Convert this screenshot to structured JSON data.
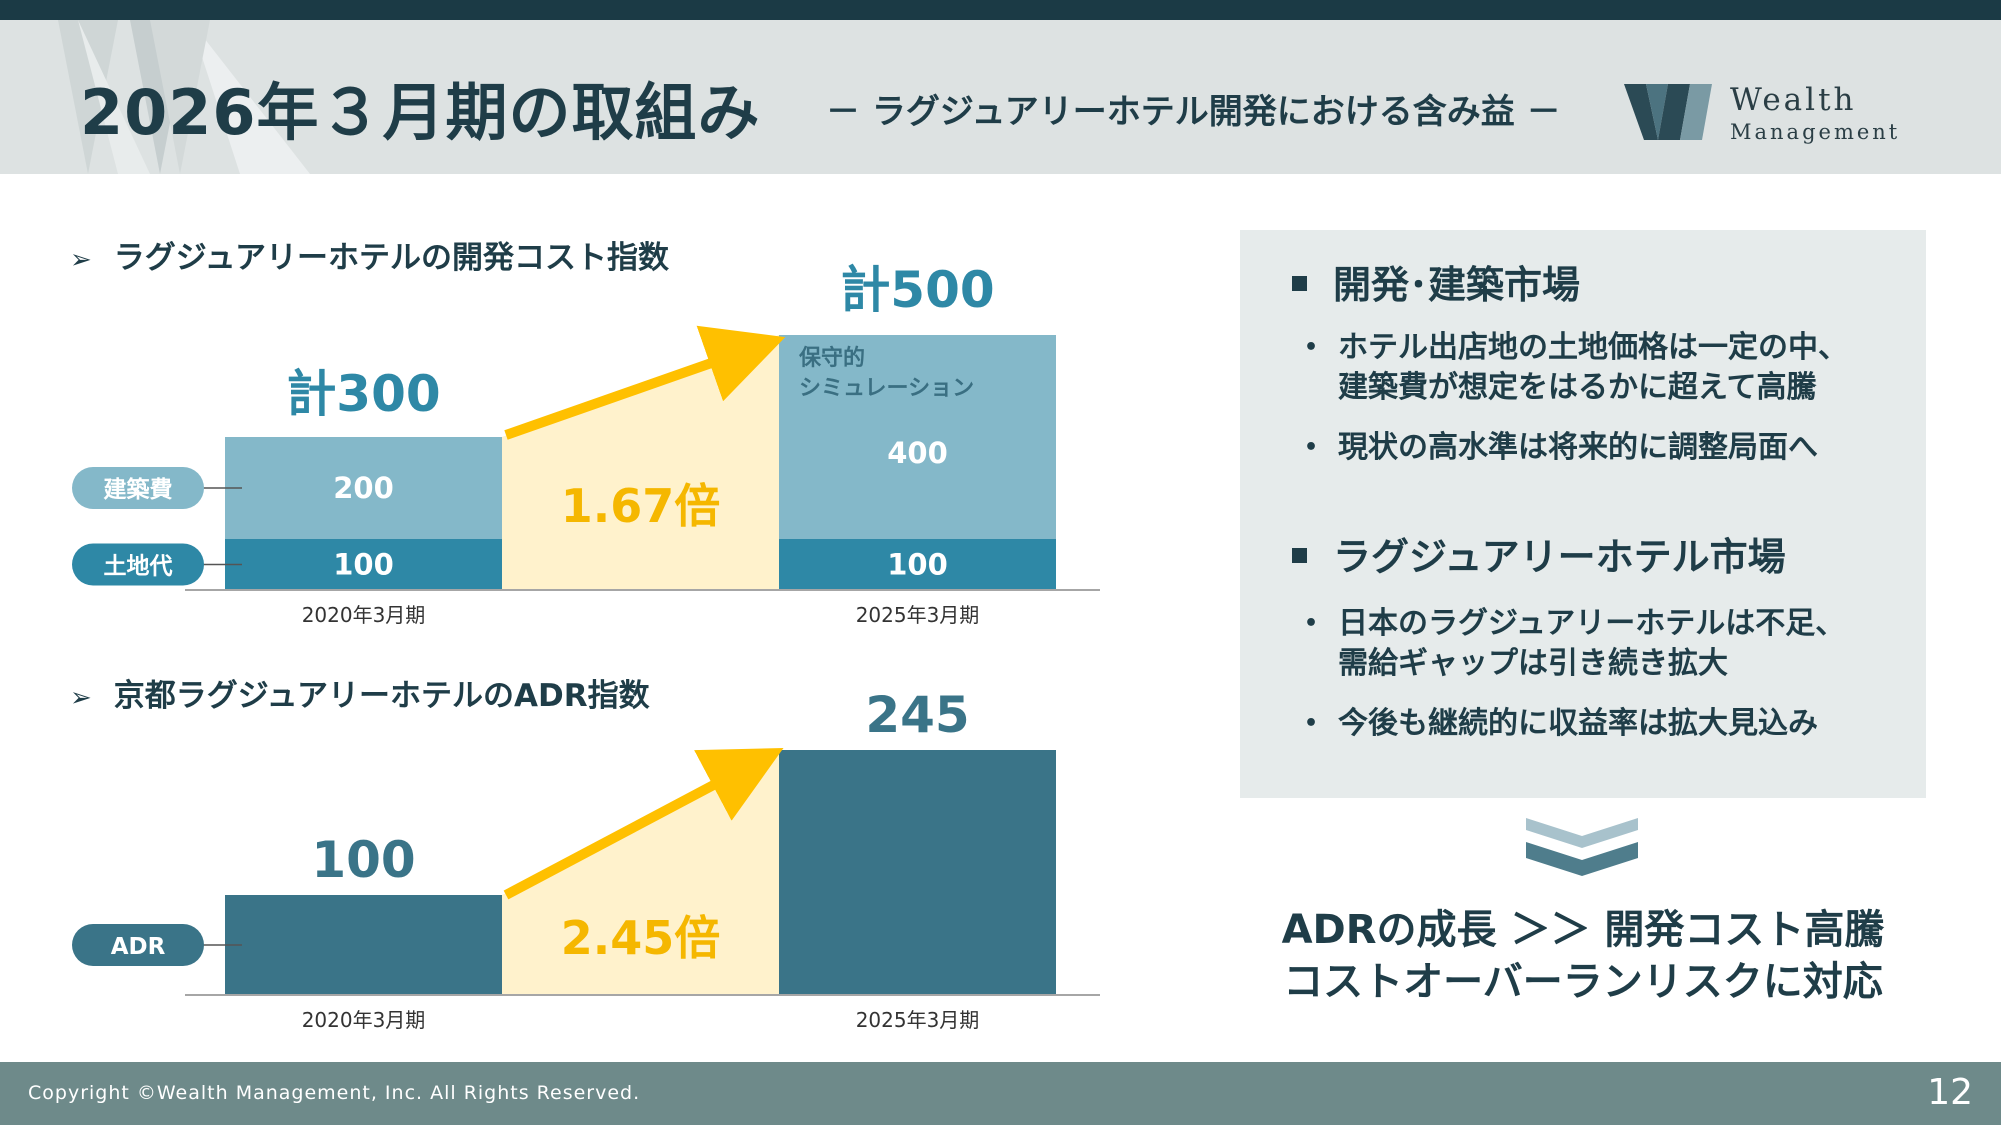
{
  "header": {
    "title": "2026年３月期の取組み",
    "subtitle": "－ ラグジュアリーホテル開発における含み益 －",
    "logo_line1": "Wealth",
    "logo_line2": "Management"
  },
  "colors": {
    "dark": "#1f3d48",
    "teal_dark": "#2e88a6",
    "teal_light": "#84b8c9",
    "adr_bar": "#3a7488",
    "arrow": "#ffc000",
    "highlight_fill": "#fff2cc",
    "multiplier_text": "#f5b700",
    "panel_bg": "#e6ebeb",
    "footer_bg": "#6e8a8a"
  },
  "cost_section": {
    "heading": "ラグジュアリーホテルの開発コスト指数",
    "labels": {
      "construction": "建築費",
      "land": "土地代"
    },
    "total_2020": "計300",
    "total_2025": "計500",
    "conservative_note_line1": "保守的",
    "conservative_note_line2": "シミュレーション",
    "multiplier": "1.67倍",
    "x_labels": [
      "2020年3月期",
      "2025年3月期"
    ]
  },
  "adr_section": {
    "heading": "京都ラグジュアリーホテルのADR指数",
    "label": "ADR",
    "multiplier": "2.45倍",
    "x_labels": [
      "2020年3月期",
      "2025年3月期"
    ]
  },
  "chart_data": [
    {
      "type": "bar",
      "stacked": true,
      "title": "ラグジュアリーホテルの開発コスト指数",
      "categories": [
        "2020年3月期",
        "2025年3月期"
      ],
      "series": [
        {
          "name": "土地代",
          "values": [
            100,
            100
          ]
        },
        {
          "name": "建築費",
          "values": [
            200,
            400
          ]
        }
      ],
      "totals": [
        300,
        500
      ],
      "ylim": [
        0,
        500
      ]
    },
    {
      "type": "bar",
      "title": "京都ラグジュアリーホテルのADR指数",
      "categories": [
        "2020年3月期",
        "2025年3月期"
      ],
      "series": [
        {
          "name": "ADR",
          "values": [
            100,
            245
          ]
        }
      ],
      "ylim": [
        0,
        245
      ]
    }
  ],
  "panel": {
    "sections": [
      {
        "heading": "開発･建築市場",
        "bullets": [
          [
            "ホテル出店地の土地価格は一定の中、",
            "建築費が想定をはるかに超えて高騰"
          ],
          [
            "現状の高水準は将来的に調整局面へ"
          ]
        ]
      },
      {
        "heading": "ラグジュアリーホテル市場",
        "bullets": [
          [
            "日本のラグジュアリーホテルは不足、",
            "需給ギャップは引き続き拡大"
          ],
          [
            "今後も継続的に収益率は拡大見込み"
          ]
        ]
      }
    ],
    "bullet_symbol": "•",
    "heading_symbol": "■"
  },
  "conclusion": {
    "line1": "ADRの成長 ＞＞ 開発コスト高騰",
    "line2": "コストオーバーランリスクに対応"
  },
  "footer": {
    "copyright": "Copyright ©Wealth Management, Inc. All Rights Reserved.",
    "page_number": "12"
  }
}
